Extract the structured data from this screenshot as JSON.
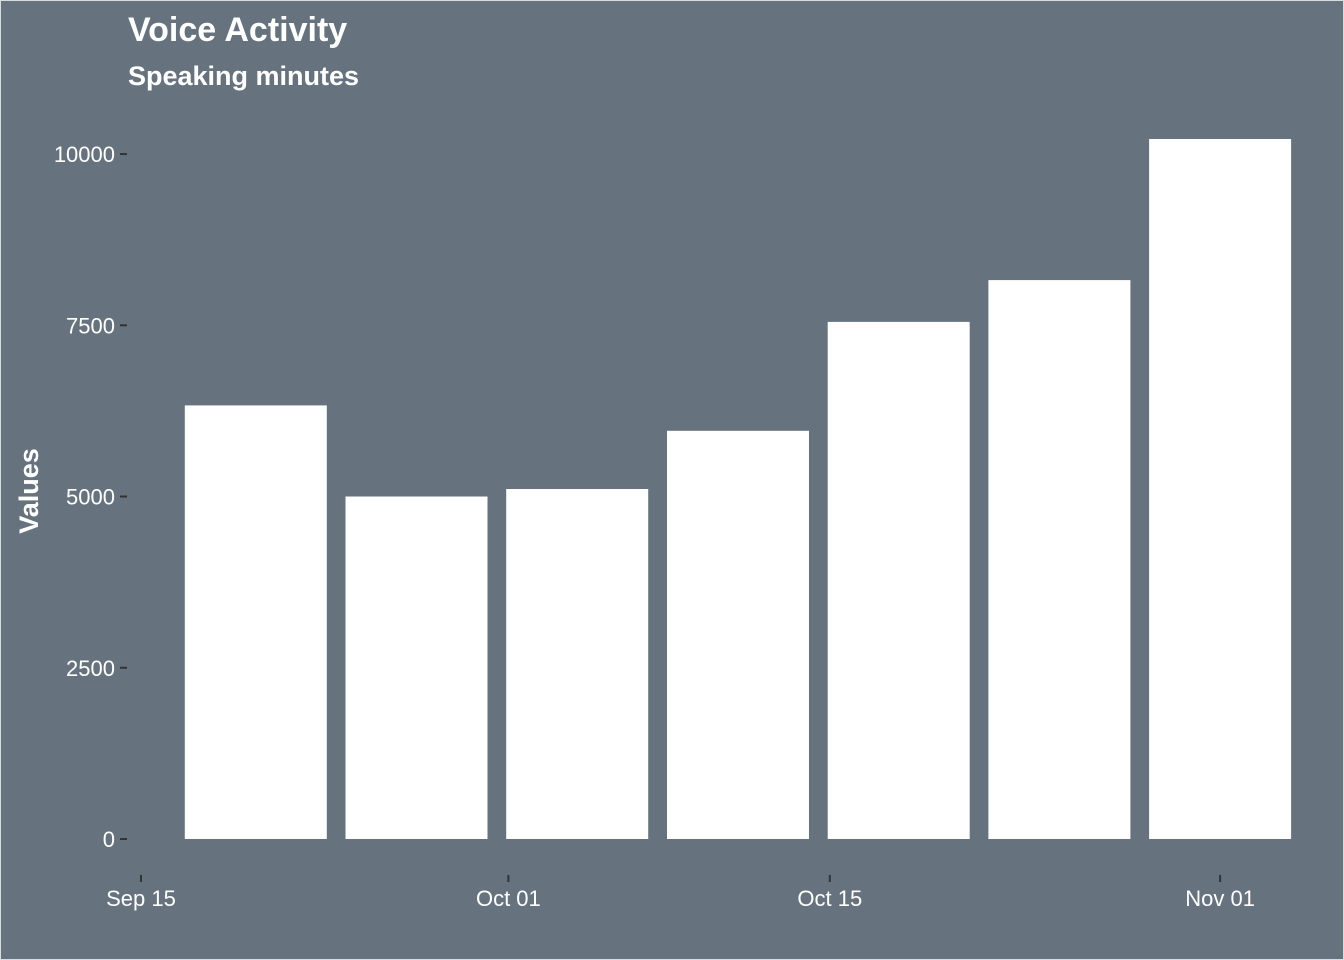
{
  "chart_data": {
    "type": "bar",
    "title": "Voice Activity",
    "subtitle": "Speaking minutes",
    "xlabel": "",
    "ylabel": "Values",
    "x": [
      "2015-09-20",
      "2015-09-27",
      "2015-10-04",
      "2015-10-11",
      "2015-10-18",
      "2015-10-25",
      "2015-11-01"
    ],
    "values": [
      6330,
      5000,
      5110,
      5960,
      7550,
      8160,
      10220
    ],
    "ylim": [
      0,
      10220
    ],
    "yticks": [
      0,
      2500,
      5000,
      7500,
      10000
    ],
    "ytick_labels": [
      "0",
      "2500",
      "5000",
      "7500",
      "10000"
    ],
    "xticks": [
      "2015-09-15",
      "2015-10-01",
      "2015-10-15",
      "2015-11-01"
    ],
    "xtick_labels": [
      "Sep 15",
      "Oct 01",
      "Oct 15",
      "Nov 01"
    ],
    "xlim": [
      "2015-09-15",
      "2015-11-04"
    ],
    "grid": false,
    "legend": "none",
    "colors": {
      "background": "#66737e",
      "bar": "#ffffff",
      "text": "#ffffff",
      "tick": "#333333"
    }
  }
}
